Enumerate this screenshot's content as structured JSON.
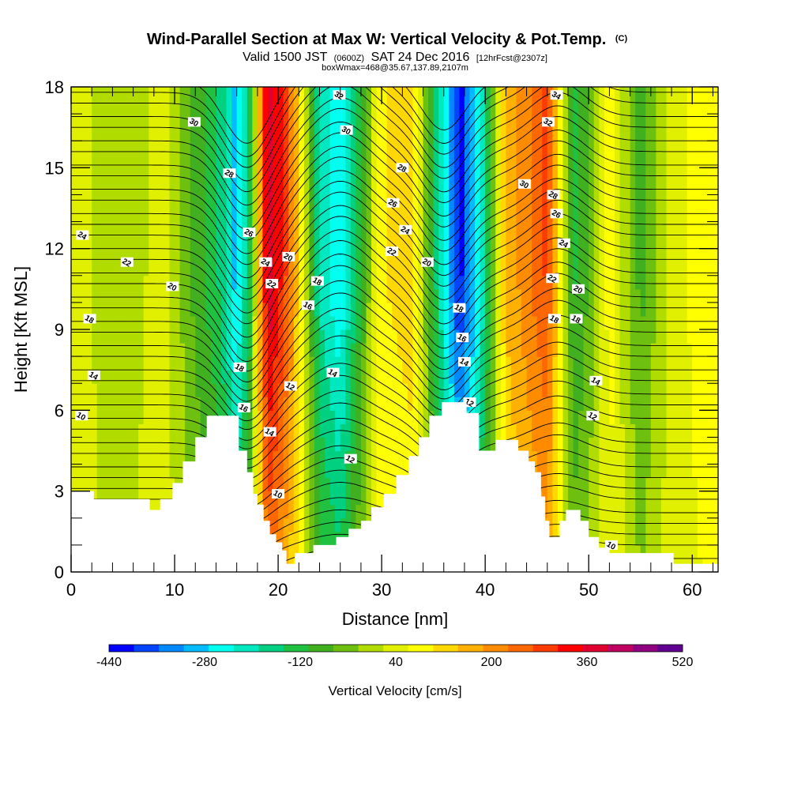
{
  "chart_data": {
    "type": "heatmap",
    "title": "Wind-Parallel Section at Max W: Vertical Velocity & Pot.Temp.",
    "title_mark": "(C)",
    "subtitle_valid": "Valid 1500 JST",
    "subtitle_utc": "(0600Z)",
    "subtitle_date": "SAT 24 Dec 2016",
    "subtitle_fcst": "[12hrFcst@2307z]",
    "subtitle_box": "boxWmax=468@35.67,137.89,2107m",
    "xlabel": "Distance [nm]",
    "ylabel": "Height [Kft MSL]",
    "xlim": [
      0,
      62.5
    ],
    "ylim": [
      0,
      18
    ],
    "x_ticks": [
      0,
      10,
      20,
      30,
      40,
      50,
      60
    ],
    "y_ticks": [
      0,
      3,
      6,
      9,
      12,
      15,
      18
    ],
    "colorbar": {
      "label": "Vertical Velocity [cm/s]",
      "tick_labels": [
        "-440",
        "-280",
        "-120",
        "40",
        "200",
        "360",
        "520"
      ],
      "tick_values": [
        -440,
        -280,
        -120,
        40,
        200,
        360,
        520
      ],
      "colors": [
        "#0000ff",
        "#0044ff",
        "#0088ff",
        "#00bbff",
        "#00ffee",
        "#00e8c0",
        "#00d080",
        "#20c040",
        "#40b020",
        "#6ec010",
        "#b0dc00",
        "#e0f000",
        "#ffff00",
        "#ffd800",
        "#ffb000",
        "#ff8c00",
        "#ff6800",
        "#ff3c00",
        "#ff0000",
        "#e00030",
        "#c00060",
        "#900080",
        "#600090"
      ]
    },
    "velocity_bands": [
      {
        "x": 0.0,
        "value": 60
      },
      {
        "x": 4.0,
        "value": -20
      },
      {
        "x": 9.0,
        "value": 40
      },
      {
        "x": 12.0,
        "value": -80
      },
      {
        "x": 14.5,
        "value": -160
      },
      {
        "x": 16.0,
        "value": -300
      },
      {
        "x": 17.3,
        "value": -120
      },
      {
        "x": 19.0,
        "value": 400
      },
      {
        "x": 20.5,
        "value": 300
      },
      {
        "x": 22.0,
        "value": 120
      },
      {
        "x": 24.0,
        "value": -200
      },
      {
        "x": 26.0,
        "value": -280
      },
      {
        "x": 28.0,
        "value": -100
      },
      {
        "x": 30.0,
        "value": 100
      },
      {
        "x": 33.0,
        "value": 120
      },
      {
        "x": 35.0,
        "value": -120
      },
      {
        "x": 37.5,
        "value": -420
      },
      {
        "x": 39.5,
        "value": -250
      },
      {
        "x": 42.0,
        "value": 150
      },
      {
        "x": 46.0,
        "value": 280
      },
      {
        "x": 48.5,
        "value": -120
      },
      {
        "x": 50.0,
        "value": -60
      },
      {
        "x": 52.0,
        "value": 80
      },
      {
        "x": 55.0,
        "value": -80
      },
      {
        "x": 58.0,
        "value": 40
      },
      {
        "x": 62.5,
        "value": 100
      }
    ],
    "terrain": [
      [
        0,
        3.0
      ],
      [
        2.2,
        3.0
      ],
      [
        2.2,
        2.7
      ],
      [
        7.6,
        2.7
      ],
      [
        7.6,
        2.3
      ],
      [
        8.6,
        2.3
      ],
      [
        8.6,
        2.7
      ],
      [
        9.8,
        2.7
      ],
      [
        9.8,
        3.3
      ],
      [
        10.8,
        3.3
      ],
      [
        10.8,
        4.1
      ],
      [
        12.0,
        4.1
      ],
      [
        12.0,
        5.0
      ],
      [
        13.1,
        5.0
      ],
      [
        13.1,
        5.8
      ],
      [
        16.2,
        5.8
      ],
      [
        16.2,
        4.5
      ],
      [
        17.0,
        4.5
      ],
      [
        17.0,
        3.7
      ],
      [
        17.6,
        3.7
      ],
      [
        17.6,
        2.9
      ],
      [
        18.0,
        2.9
      ],
      [
        18.0,
        2.5
      ],
      [
        18.6,
        2.5
      ],
      [
        18.6,
        1.9
      ],
      [
        19.2,
        1.9
      ],
      [
        19.2,
        1.4
      ],
      [
        19.8,
        1.4
      ],
      [
        19.8,
        1.1
      ],
      [
        20.4,
        1.1
      ],
      [
        20.4,
        0.8
      ],
      [
        20.8,
        0.8
      ],
      [
        20.8,
        0.3
      ],
      [
        21.6,
        0.3
      ],
      [
        21.6,
        0.7
      ],
      [
        23.4,
        0.7
      ],
      [
        23.4,
        1.0
      ],
      [
        25.6,
        1.0
      ],
      [
        25.6,
        1.3
      ],
      [
        26.8,
        1.3
      ],
      [
        26.8,
        1.6
      ],
      [
        28.0,
        1.6
      ],
      [
        28.0,
        1.9
      ],
      [
        29.0,
        1.9
      ],
      [
        29.0,
        2.4
      ],
      [
        30.2,
        2.4
      ],
      [
        30.2,
        2.9
      ],
      [
        31.4,
        2.9
      ],
      [
        31.4,
        3.6
      ],
      [
        32.6,
        3.6
      ],
      [
        32.6,
        4.3
      ],
      [
        33.6,
        4.3
      ],
      [
        33.6,
        5.0
      ],
      [
        34.6,
        5.0
      ],
      [
        34.6,
        5.8
      ],
      [
        35.8,
        5.8
      ],
      [
        35.8,
        6.3
      ],
      [
        38.2,
        6.3
      ],
      [
        38.2,
        5.9
      ],
      [
        39.4,
        5.9
      ],
      [
        39.4,
        4.5
      ],
      [
        41.0,
        4.5
      ],
      [
        41.0,
        4.9
      ],
      [
        43.2,
        4.9
      ],
      [
        43.2,
        4.5
      ],
      [
        44.2,
        4.5
      ],
      [
        44.2,
        4.1
      ],
      [
        44.8,
        4.1
      ],
      [
        44.8,
        3.7
      ],
      [
        45.4,
        3.7
      ],
      [
        45.4,
        2.8
      ],
      [
        45.8,
        2.8
      ],
      [
        45.8,
        1.9
      ],
      [
        46.2,
        1.9
      ],
      [
        46.2,
        1.3
      ],
      [
        47.2,
        1.3
      ],
      [
        47.2,
        1.9
      ],
      [
        47.8,
        1.9
      ],
      [
        47.8,
        2.3
      ],
      [
        49.2,
        2.3
      ],
      [
        49.2,
        1.9
      ],
      [
        50.0,
        1.9
      ],
      [
        50.0,
        1.3
      ],
      [
        51.0,
        1.3
      ],
      [
        51.0,
        0.9
      ],
      [
        52.0,
        0.9
      ],
      [
        52.0,
        0.7
      ],
      [
        58.2,
        0.7
      ],
      [
        58.2,
        0.3
      ],
      [
        62.5,
        0.3
      ]
    ],
    "theta_contours": {
      "base_values": [
        0.1,
        0.5,
        1.0,
        1.4,
        1.8,
        2.2,
        2.7,
        3.1,
        3.5,
        3.9,
        4.4,
        4.8,
        5.3,
        5.7,
        6.2,
        6.6,
        7.1,
        7.5,
        8.0,
        8.4,
        8.9,
        9.3,
        9.8,
        10.2,
        10.7,
        11.1,
        11.6,
        12.0,
        12.5,
        12.9,
        13.3,
        13.8,
        14.2,
        14.7,
        15.1,
        15.6,
        16.0,
        16.5,
        16.9,
        17.4,
        17.8,
        18.3
      ],
      "wave_centers": [
        17,
        26,
        36,
        47
      ],
      "wave_amplitudes": [
        -2.4,
        1.6,
        -1.9,
        1.3
      ],
      "wave_widths": [
        3.2,
        4.0,
        3.0,
        3.6
      ],
      "labels": [
        {
          "text": "30",
          "x": 11.9,
          "y": 16.7
        },
        {
          "text": "28",
          "x": 15.3,
          "y": 14.8
        },
        {
          "text": "26",
          "x": 17.2,
          "y": 12.6
        },
        {
          "text": "24",
          "x": 18.8,
          "y": 11.5
        },
        {
          "text": "22",
          "x": 19.4,
          "y": 10.7
        },
        {
          "text": "22",
          "x": 5.4,
          "y": 11.5
        },
        {
          "text": "24",
          "x": 1.1,
          "y": 12.5
        },
        {
          "text": "20",
          "x": 9.8,
          "y": 10.6
        },
        {
          "text": "18",
          "x": 1.8,
          "y": 9.4
        },
        {
          "text": "14",
          "x": 2.2,
          "y": 7.3
        },
        {
          "text": "10",
          "x": 1.0,
          "y": 5.8
        },
        {
          "text": "18",
          "x": 16.3,
          "y": 7.6
        },
        {
          "text": "16",
          "x": 16.7,
          "y": 6.1
        },
        {
          "text": "14",
          "x": 19.2,
          "y": 5.2
        },
        {
          "text": "12",
          "x": 21.2,
          "y": 6.9
        },
        {
          "text": "10",
          "x": 20.0,
          "y": 2.9
        },
        {
          "text": "20",
          "x": 21.0,
          "y": 11.7
        },
        {
          "text": "18",
          "x": 23.8,
          "y": 10.8
        },
        {
          "text": "16",
          "x": 22.9,
          "y": 9.9
        },
        {
          "text": "14",
          "x": 25.3,
          "y": 7.4
        },
        {
          "text": "12",
          "x": 27.0,
          "y": 4.2
        },
        {
          "text": "32",
          "x": 25.9,
          "y": 17.7
        },
        {
          "text": "30",
          "x": 26.6,
          "y": 16.4
        },
        {
          "text": "28",
          "x": 32.0,
          "y": 15.0
        },
        {
          "text": "26",
          "x": 31.1,
          "y": 13.7
        },
        {
          "text": "24",
          "x": 32.3,
          "y": 12.7
        },
        {
          "text": "22",
          "x": 31.0,
          "y": 11.9
        },
        {
          "text": "20",
          "x": 34.4,
          "y": 11.5
        },
        {
          "text": "18",
          "x": 37.5,
          "y": 9.8
        },
        {
          "text": "16",
          "x": 37.8,
          "y": 8.7
        },
        {
          "text": "14",
          "x": 38.0,
          "y": 7.8
        },
        {
          "text": "12",
          "x": 38.5,
          "y": 6.3
        },
        {
          "text": "34",
          "x": 46.9,
          "y": 17.7
        },
        {
          "text": "32",
          "x": 46.1,
          "y": 16.7
        },
        {
          "text": "30",
          "x": 43.8,
          "y": 14.4
        },
        {
          "text": "28",
          "x": 46.6,
          "y": 14.0
        },
        {
          "text": "26",
          "x": 46.9,
          "y": 13.3
        },
        {
          "text": "24",
          "x": 47.6,
          "y": 12.2
        },
        {
          "text": "22",
          "x": 46.5,
          "y": 10.9
        },
        {
          "text": "20",
          "x": 49.0,
          "y": 10.5
        },
        {
          "text": "18",
          "x": 46.7,
          "y": 9.4
        },
        {
          "text": "18",
          "x": 48.8,
          "y": 9.4
        },
        {
          "text": "14",
          "x": 50.7,
          "y": 7.1
        },
        {
          "text": "12",
          "x": 50.4,
          "y": 5.8
        },
        {
          "text": "10",
          "x": 52.2,
          "y": 1.0
        }
      ]
    },
    "grid": false
  }
}
